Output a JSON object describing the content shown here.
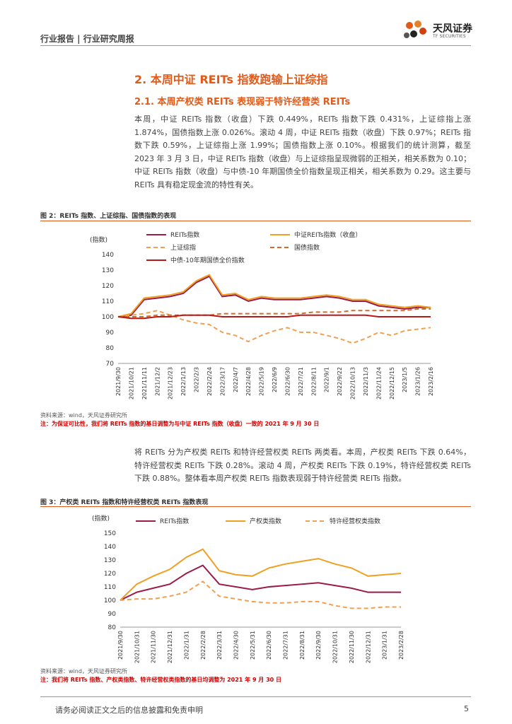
{
  "header": {
    "breadcrumb": "行业报告 | 行业研究周报"
  },
  "logo": {
    "name_cn": "天风证券",
    "name_en": "TF SECURITIES"
  },
  "section": {
    "title": "2. 本周中证 REITs 指数跑输上证综指",
    "subtitle": "2.1. 本周产权类 REITs 表现弱于特许经营类 REITs"
  },
  "paragraphs": {
    "p1": "本周，中证 REITs 指数（收盘）下跌 0.449%，REITs 指数下跌 0.431%，上证综指上涨 1.874%，国债指数上涨 0.026%。滚动 4 周，中证 REITs 指数（收盘）下跌 0.97%；REITs 指数下跌 0.59%，上证综指上涨 1.99%；国债指数上涨 0.10%。根据我们的统计测算，截至 2023 年 3 月 3 日，中证 REITs 指数（收盘）与上证综指呈现微弱的正相关，相关系数为 0.10；中证 REITs 指数（收盘）与中债-10 年期国债全价指数呈现正相关，相关系数为 0.29。这主要与 REITs 具有稳定现金流的特性有关。",
    "p2": "将 REITs 分为产权类 REITs 和特许经营权类 REITs 两类看。本周，产权类 REITs 下跌 0.64%，特许经营权类 REITs 下跌 0.28%。滚动 4 周，产权类 REITs 下跌 0.19%，特许经营权类 REITs 下跌 0.88%。整体看本周产权类 REITs 指数表现弱于特许经营类 REITs 指数。"
  },
  "figure1": {
    "title": "图 2：REITs 指数、上证综指、国债指数的表现",
    "source": "资料来源：wind，天风证券研究所",
    "note": "注：为保证可比性，我们将 REITs 指数的基日调整为与中证 REITs 指数（收盘）一致的 2021 年 9 月 30 日"
  },
  "figure2": {
    "title": "图 3：产权类 REITs 指数和特许经营权类 REITs 指数表现",
    "source": "资料来源：wind，天风证券研究所",
    "note": "注：我们将 REITs 指数、产权类指数、特许经营权类指数的基日均调整为 2021 年 9 月 30 日"
  },
  "footer": {
    "disclaimer": "请务必阅读正文之后的信息披露和免责申明",
    "page_number": "5"
  },
  "chart_data": [
    {
      "type": "line",
      "ylabel": "(指数)",
      "ylim": [
        70,
        140
      ],
      "yticks": [
        70,
        80,
        90,
        100,
        110,
        120,
        130,
        140
      ],
      "categories": [
        "2021/9/30",
        "2021/10/21",
        "2021/11/11",
        "2021/12/2",
        "2021/12/23",
        "2022/1/13",
        "2022/2/3",
        "2022/2/24",
        "2022/3/17",
        "2022/4/7",
        "2022/4/28",
        "2022/5/19",
        "2022/6/9",
        "2022/6/30",
        "2022/7/21",
        "2022/8/11",
        "2022/9/1",
        "2022/9/22",
        "2022/10/13",
        "2022/11/3",
        "2022/11/24",
        "2022/12/15",
        "2023/1/5",
        "2023/1/26",
        "2023/2/16"
      ],
      "legend_position": "top",
      "series": [
        {
          "name": "REITs指数",
          "color": "#9b1b4a",
          "style": "solid",
          "values": [
            100,
            101,
            111,
            112,
            113,
            115,
            122,
            126,
            113,
            114,
            110,
            112,
            111,
            111,
            111,
            112,
            113,
            112,
            110,
            110,
            107,
            106,
            105,
            106,
            106
          ]
        },
        {
          "name": "中证REITs指数（收盘）",
          "color": "#f0a020",
          "style": "solid",
          "values": [
            100,
            102,
            112,
            113,
            114,
            116,
            123,
            127,
            114,
            115,
            111,
            113,
            112,
            112,
            112,
            113,
            114,
            113,
            111,
            111,
            108,
            107,
            106,
            107,
            106
          ]
        },
        {
          "name": "上证综指",
          "color": "#f0a050",
          "style": "dashed",
          "values": [
            100,
            101,
            102,
            104,
            101,
            98,
            96,
            95,
            90,
            88,
            84,
            88,
            91,
            93,
            90,
            90,
            88,
            86,
            83,
            86,
            90,
            88,
            91,
            92,
            93
          ]
        },
        {
          "name": "国债指数",
          "color": "#d46a2a",
          "style": "dashed",
          "values": [
            100,
            100,
            100,
            101,
            101,
            101,
            101,
            101,
            102,
            102,
            102,
            102,
            102,
            102,
            102,
            103,
            103,
            103,
            104,
            104,
            104,
            104,
            104,
            105,
            105
          ]
        },
        {
          "name": "中债-10年期国债全价指数",
          "color": "#b81818",
          "style": "solid",
          "values": [
            100,
            99,
            99,
            100,
            100,
            101,
            101,
            101,
            100,
            100,
            100,
            100,
            100,
            100,
            101,
            101,
            101,
            101,
            101,
            101,
            100,
            100,
            100,
            100,
            100
          ]
        }
      ]
    },
    {
      "type": "line",
      "ylabel": "(指数)",
      "ylim": [
        80,
        150
      ],
      "yticks": [
        80,
        90,
        100,
        110,
        120,
        130,
        140,
        150
      ],
      "categories": [
        "2021/9/30",
        "2021/10/31",
        "2021/11/30",
        "2021/12/31",
        "2022/1/31",
        "2022/2/28",
        "2022/3/31",
        "2022/4/30",
        "2022/5/31",
        "2022/6/30",
        "2022/7/31",
        "2022/8/31",
        "2022/9/30",
        "2022/10/31",
        "2022/11/30",
        "2022/12/31",
        "2023/1/31",
        "2023/2/28"
      ],
      "legend_position": "top",
      "series": [
        {
          "name": "REITs指数",
          "color": "#9b1b4a",
          "style": "solid",
          "values": [
            100,
            106,
            109,
            112,
            120,
            126,
            112,
            110,
            108,
            110,
            111,
            112,
            113,
            111,
            109,
            106,
            106,
            106
          ]
        },
        {
          "name": "产权类指数",
          "color": "#f0a020",
          "style": "solid",
          "values": [
            100,
            112,
            118,
            123,
            132,
            138,
            122,
            119,
            118,
            124,
            127,
            129,
            131,
            127,
            124,
            118,
            119,
            120
          ]
        },
        {
          "name": "特许经营权类指数",
          "color": "#f0a050",
          "style": "dashed",
          "values": [
            100,
            101,
            101,
            103,
            106,
            114,
            103,
            101,
            99,
            98,
            98,
            99,
            99,
            96,
            94,
            94,
            95,
            95
          ]
        }
      ]
    }
  ]
}
